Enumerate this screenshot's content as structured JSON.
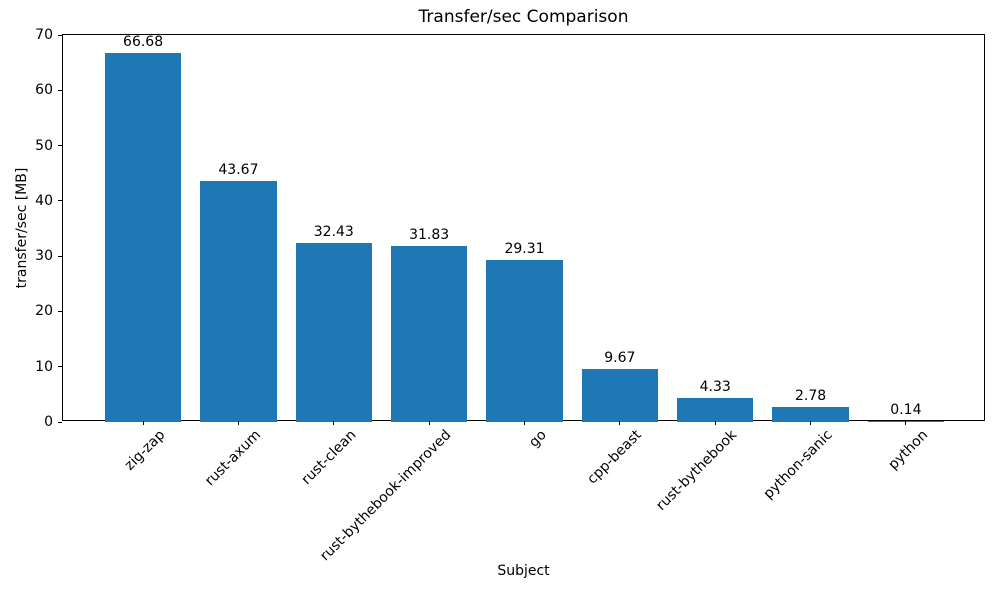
{
  "chart_data": {
    "type": "bar",
    "title": "Transfer/sec Comparison",
    "xlabel": "Subject",
    "ylabel": "transfer/sec [MB]",
    "categories": [
      "zig-zap",
      "rust-axum",
      "rust-clean",
      "rust-bythebook-improved",
      "go",
      "cpp-beast",
      "rust-bythebook",
      "python-sanic",
      "python"
    ],
    "values": [
      66.68,
      43.67,
      32.43,
      31.83,
      29.31,
      9.67,
      4.33,
      2.78,
      0.14
    ],
    "value_labels": [
      "66.68",
      "43.67",
      "32.43",
      "31.83",
      "29.31",
      "9.67",
      "4.33",
      "2.78",
      "0.14"
    ],
    "ylim": [
      0,
      70
    ],
    "yticks": [
      0,
      10,
      20,
      30,
      40,
      50,
      60,
      70
    ],
    "bar_color": "#1f77b4",
    "axis_color": "#000000",
    "text_color": "#000000",
    "grid": false,
    "legend": null
  }
}
